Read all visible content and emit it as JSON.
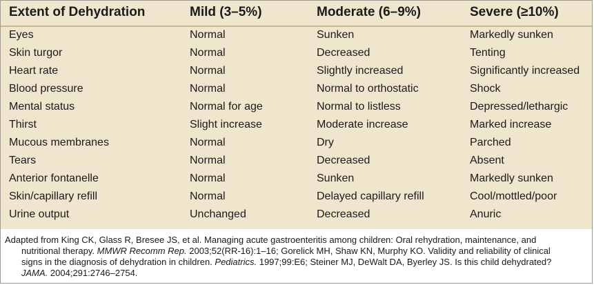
{
  "table": {
    "headers": [
      "Extent of Dehydration",
      "Mild (3–5%)",
      "Moderate (6–9%)",
      "Severe (≥10%)"
    ],
    "rows": [
      [
        "Eyes",
        "Normal",
        "Sunken",
        "Markedly sunken"
      ],
      [
        "Skin turgor",
        "Normal",
        "Decreased",
        "Tenting"
      ],
      [
        "Heart rate",
        "Normal",
        "Slightly increased",
        "Significantly increased"
      ],
      [
        "Blood pressure",
        "Normal",
        "Normal to orthostatic",
        "Shock"
      ],
      [
        "Mental status",
        "Normal for age",
        "Normal to listless",
        "Depressed/lethargic"
      ],
      [
        "Thirst",
        "Slight increase",
        "Moderate increase",
        "Marked increase"
      ],
      [
        "Mucous membranes",
        "Normal",
        "Dry",
        "Parched"
      ],
      [
        "Tears",
        "Normal",
        "Decreased",
        "Absent"
      ],
      [
        "Anterior fontanelle",
        "Normal",
        "Sunken",
        "Markedly sunken"
      ],
      [
        "Skin/capillary refill",
        "Normal",
        "Delayed capillary refill",
        "Cool/mottled/poor"
      ],
      [
        "Urine output",
        "Unchanged",
        "Decreased",
        "Anuric"
      ]
    ]
  },
  "footnote": {
    "line1": "Adapted from King CK, Glass R, Bresee JS, et al. Managing acute gastroenteritis among children: Oral rehydration, maintenance, and",
    "line2_a": "nutritional therapy. ",
    "line2_journal": "MMWR Recomm Rep.",
    "line2_b": " 2003;52(RR-16):1–16; Gorelick MH, Shaw KN, Murphy KO. Validity and reliability of clinical",
    "line3_a": "signs in the diagnosis of dehydration in children. ",
    "line3_journal": "Pediatrics.",
    "line3_b": " 1997;99:E6; Steiner MJ, DeWalt DA, Byerley JS. Is this child dehydrated?",
    "line4_journal": "JAMA.",
    "line4_b": " 2004;291:2746–2754."
  }
}
